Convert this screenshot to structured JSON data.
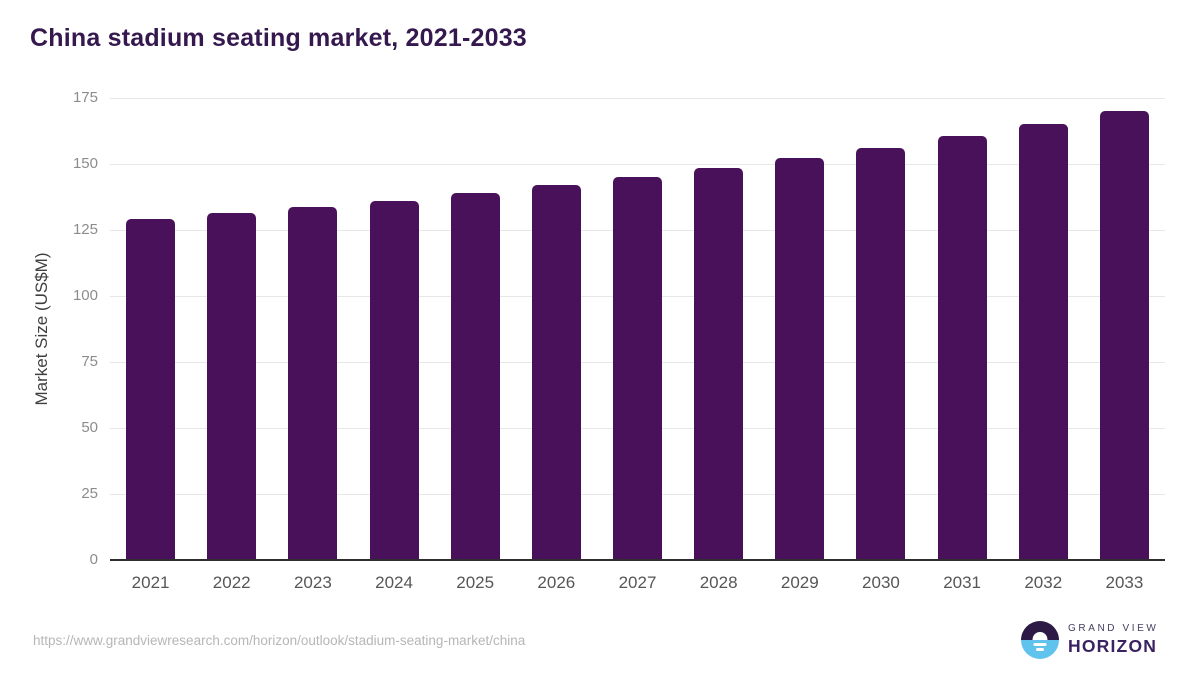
{
  "chart_data": {
    "type": "bar",
    "title": "China stadium seating market, 2021-2033",
    "ylabel": "Market Size (US$M)",
    "xlabel": "",
    "categories": [
      "2021",
      "2022",
      "2023",
      "2024",
      "2025",
      "2026",
      "2027",
      "2028",
      "2029",
      "2030",
      "2031",
      "2032",
      "2033"
    ],
    "values": [
      129.0,
      131.3,
      133.7,
      136.1,
      139.2,
      142.2,
      145.2,
      148.6,
      152.1,
      156.2,
      160.5,
      165.1,
      170.1
    ],
    "ylim": [
      0,
      175
    ],
    "yticks": [
      0,
      25,
      50,
      75,
      100,
      125,
      150,
      175
    ],
    "grid": "horizontal",
    "legend": "none",
    "bar_color": "#491159"
  },
  "footer": {
    "source_url": "https://www.grandviewresearch.com/horizon/outlook/stadium-seating-market/china",
    "logo": {
      "line1": "GRAND VIEW",
      "line2": "HORIZON"
    }
  },
  "colors": {
    "bar": "#491159",
    "title_text": "#35184e",
    "gridline": "#e7e7e7",
    "axis_line": "#2e2e2e",
    "y_tick_label": "#8c8c8c",
    "x_tick_label": "#565656",
    "y_axis_title": "#3f3f3f",
    "source_url_text": "#b6b6b6",
    "logo_purple": "#2d1945",
    "logo_blue": "#5fc3ee",
    "logo_text": "#3a2161"
  }
}
